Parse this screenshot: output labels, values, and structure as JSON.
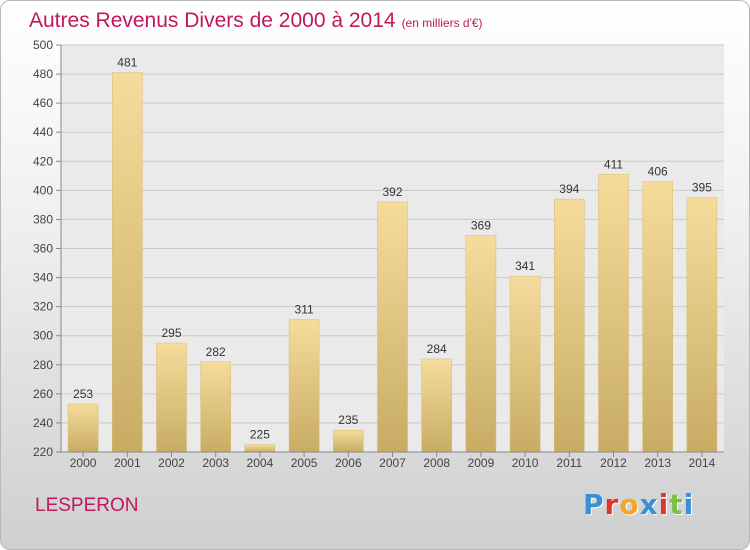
{
  "header": {
    "title": "Autres Revenus Divers de 2000 à 2014",
    "subtitle": "(en milliers d'€)"
  },
  "footer": {
    "place": "LESPERON",
    "brand": "Proxiti",
    "brand_colors": [
      "#3a8fd6",
      "#e2342b",
      "#f5a623",
      "#3a8fd6",
      "#e2342b",
      "#7cc142",
      "#3a8fd6"
    ]
  },
  "chart_data": {
    "type": "bar",
    "title": "Autres Revenus Divers de 2000 à 2014",
    "subtitle": "(en milliers d'€)",
    "categories": [
      "2000",
      "2001",
      "2002",
      "2003",
      "2004",
      "2005",
      "2006",
      "2007",
      "2008",
      "2009",
      "2010",
      "2011",
      "2012",
      "2013",
      "2014"
    ],
    "values": [
      253,
      481,
      295,
      282,
      225,
      311,
      235,
      392,
      284,
      369,
      341,
      394,
      411,
      406,
      395
    ],
    "ylim": [
      220,
      500
    ],
    "yticks": [
      220,
      240,
      260,
      280,
      300,
      320,
      340,
      360,
      380,
      400,
      420,
      440,
      460,
      480,
      500
    ],
    "grid": true,
    "bar_color": "#e8c77a"
  }
}
